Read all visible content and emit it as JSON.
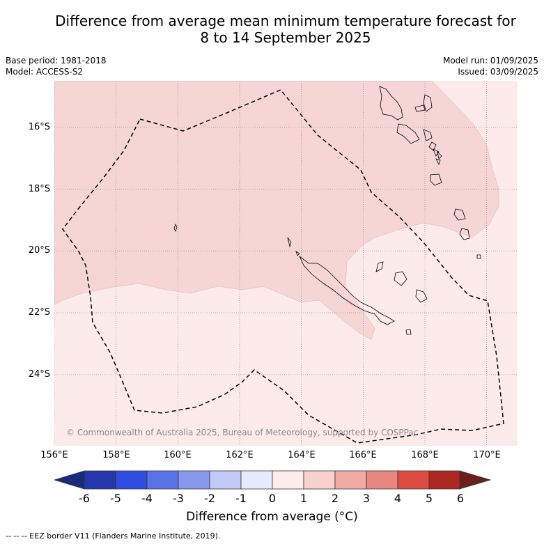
{
  "header": {
    "title_line1": "Difference from average mean minimum temperature forecast for",
    "title_line2": "8 to 14 September 2025",
    "base_period": "Base period: 1981-2018",
    "model": "Model: ACCESS-S2",
    "model_run": "Model run: 01/09/2025",
    "issued": "Issued: 03/09/2025"
  },
  "map": {
    "lon_labels": [
      "156°E",
      "158°E",
      "160°E",
      "162°E",
      "164°E",
      "166°E",
      "168°E",
      "170°E"
    ],
    "lat_labels": [
      "16°S",
      "18°S",
      "20°S",
      "22°S",
      "24°S"
    ],
    "lon_range": [
      156,
      171
    ],
    "lat_range": [
      -14.5,
      -26.3
    ],
    "regions": [
      {
        "category": "1 to 2",
        "color": "#f5d6d4"
      },
      {
        "category": "0 to 1",
        "color": "#fcebea"
      }
    ],
    "copyright": "© Commonwealth of Australia 2025, Bureau of Meteorology, supported by COSPPac"
  },
  "colorbar": {
    "ticks": [
      "-6",
      "-5",
      "-4",
      "-3",
      "-2",
      "-1",
      "0",
      "1",
      "2",
      "3",
      "4",
      "5",
      "6"
    ],
    "colors": [
      "#2437ab",
      "#2f4ce0",
      "#5773e6",
      "#8798ec",
      "#c1c8f5",
      "#e8ebfb",
      "#fdeceb",
      "#f6d1ce",
      "#f0aba6",
      "#e88680",
      "#de4b40",
      "#ab2720"
    ],
    "under_color": "#192a7f",
    "over_color": "#6d1e1a",
    "label": "Difference from average (°C)"
  },
  "footer": {
    "legend": "--  --  -- EEZ border V11 (Flanders Marine Institute, 2019)."
  }
}
